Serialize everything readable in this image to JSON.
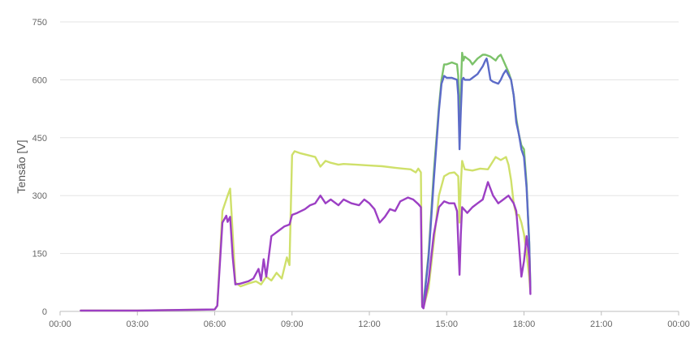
{
  "chart_data": {
    "type": "line",
    "title": "",
    "xlabel": "",
    "ylabel": "Tensão [V]",
    "ylim": [
      0,
      750
    ],
    "xlim": [
      0,
      24
    ],
    "grid": true,
    "y_ticks": [
      "0",
      "150",
      "300",
      "450",
      "600",
      "750"
    ],
    "y_tick_values": [
      0,
      150,
      300,
      450,
      600,
      750
    ],
    "x_ticks": [
      "00:00",
      "03:00",
      "06:00",
      "09:00",
      "12:00",
      "15:00",
      "18:00",
      "21:00",
      "00:00"
    ],
    "x_tick_values": [
      0,
      3,
      6,
      9,
      12,
      15,
      18,
      21,
      24
    ],
    "series": [
      {
        "color": "#7cc26a",
        "x": [
          14.05,
          14.1,
          14.3,
          14.5,
          14.7,
          14.8,
          14.9,
          15.0,
          15.2,
          15.4,
          15.45,
          15.5,
          15.55,
          15.6,
          15.65,
          15.7,
          15.9,
          16.0,
          16.2,
          16.4,
          16.5,
          16.7,
          16.9,
          17.0,
          17.1,
          17.2,
          17.4,
          17.5,
          17.6,
          17.7,
          17.8,
          17.9,
          18.0,
          18.1,
          18.2,
          18.25
        ],
        "y": [
          30,
          20,
          150,
          360,
          530,
          600,
          640,
          640,
          645,
          640,
          610,
          450,
          580,
          670,
          650,
          660,
          650,
          640,
          655,
          665,
          665,
          660,
          650,
          660,
          665,
          650,
          620,
          600,
          560,
          500,
          460,
          430,
          420,
          330,
          180,
          60
        ]
      },
      {
        "color": "#5c6bc8",
        "x": [
          14.05,
          14.1,
          14.3,
          14.5,
          14.7,
          14.8,
          14.9,
          15.0,
          15.2,
          15.4,
          15.45,
          15.5,
          15.55,
          15.6,
          15.65,
          15.7,
          15.9,
          16.0,
          16.2,
          16.3,
          16.4,
          16.5,
          16.55,
          16.6,
          16.7,
          16.8,
          17.0,
          17.1,
          17.2,
          17.3,
          17.5,
          17.6,
          17.7,
          17.8,
          17.9,
          18.0,
          18.1,
          18.2,
          18.25
        ],
        "y": [
          25,
          15,
          140,
          340,
          520,
          590,
          610,
          605,
          605,
          600,
          560,
          420,
          520,
          600,
          605,
          600,
          600,
          605,
          615,
          625,
          635,
          650,
          655,
          640,
          600,
          595,
          590,
          600,
          615,
          625,
          600,
          560,
          490,
          460,
          420,
          400,
          320,
          180,
          55
        ]
      },
      {
        "color": "#cfe06a",
        "x": [
          0.8,
          3.0,
          6.0,
          6.1,
          6.3,
          6.5,
          6.6,
          6.7,
          6.8,
          7.0,
          7.3,
          7.6,
          7.8,
          8.0,
          8.2,
          8.4,
          8.6,
          8.8,
          8.9,
          9.0,
          9.1,
          9.3,
          9.6,
          9.9,
          10.1,
          10.3,
          10.5,
          10.8,
          11.0,
          11.5,
          12.0,
          12.5,
          13.0,
          13.3,
          13.6,
          13.8,
          13.9,
          14.0,
          14.05,
          14.1,
          14.3,
          14.5,
          14.7,
          14.9,
          15.1,
          15.3,
          15.45,
          15.5,
          15.55,
          15.6,
          15.7,
          16.0,
          16.3,
          16.6,
          16.9,
          17.1,
          17.3,
          17.4,
          17.5,
          17.6,
          17.7,
          17.8,
          17.9,
          18.0,
          18.1,
          18.2,
          18.25
        ],
        "y": [
          2,
          2,
          5,
          15,
          260,
          300,
          318,
          200,
          75,
          65,
          72,
          78,
          70,
          90,
          80,
          100,
          85,
          140,
          120,
          405,
          415,
          410,
          405,
          400,
          375,
          390,
          385,
          380,
          382,
          380,
          378,
          376,
          372,
          370,
          368,
          360,
          370,
          360,
          15,
          10,
          60,
          180,
          300,
          350,
          358,
          360,
          350,
          230,
          330,
          390,
          368,
          365,
          370,
          368,
          400,
          392,
          400,
          380,
          340,
          280,
          250,
          250,
          230,
          200,
          150,
          90,
          50
        ]
      },
      {
        "color": "#9c3fc4",
        "x": [
          0.8,
          3.0,
          6.0,
          6.1,
          6.3,
          6.45,
          6.5,
          6.6,
          6.7,
          6.8,
          7.0,
          7.3,
          7.5,
          7.7,
          7.8,
          7.9,
          8.0,
          8.2,
          8.3,
          8.5,
          8.7,
          8.9,
          9.0,
          9.2,
          9.5,
          9.7,
          9.9,
          10.1,
          10.3,
          10.5,
          10.8,
          11.0,
          11.3,
          11.6,
          11.8,
          12.0,
          12.2,
          12.4,
          12.6,
          12.8,
          13.0,
          13.2,
          13.5,
          13.7,
          13.9,
          14.0,
          14.05,
          14.1,
          14.3,
          14.5,
          14.7,
          14.9,
          15.1,
          15.3,
          15.4,
          15.45,
          15.5,
          15.55,
          15.6,
          15.8,
          16.0,
          16.2,
          16.4,
          16.6,
          16.8,
          17.0,
          17.2,
          17.4,
          17.6,
          17.7,
          17.8,
          17.9,
          18.0,
          18.1,
          18.2,
          18.25
        ],
        "y": [
          2,
          2,
          5,
          15,
          230,
          248,
          232,
          245,
          140,
          70,
          72,
          78,
          85,
          110,
          80,
          135,
          90,
          195,
          200,
          210,
          220,
          225,
          250,
          255,
          265,
          275,
          280,
          300,
          280,
          290,
          275,
          290,
          280,
          275,
          290,
          280,
          265,
          230,
          245,
          265,
          260,
          285,
          295,
          290,
          278,
          270,
          12,
          8,
          80,
          200,
          270,
          285,
          280,
          280,
          260,
          180,
          95,
          200,
          270,
          255,
          270,
          280,
          290,
          335,
          300,
          280,
          290,
          300,
          280,
          260,
          180,
          90,
          130,
          195,
          140,
          45
        ]
      }
    ]
  }
}
